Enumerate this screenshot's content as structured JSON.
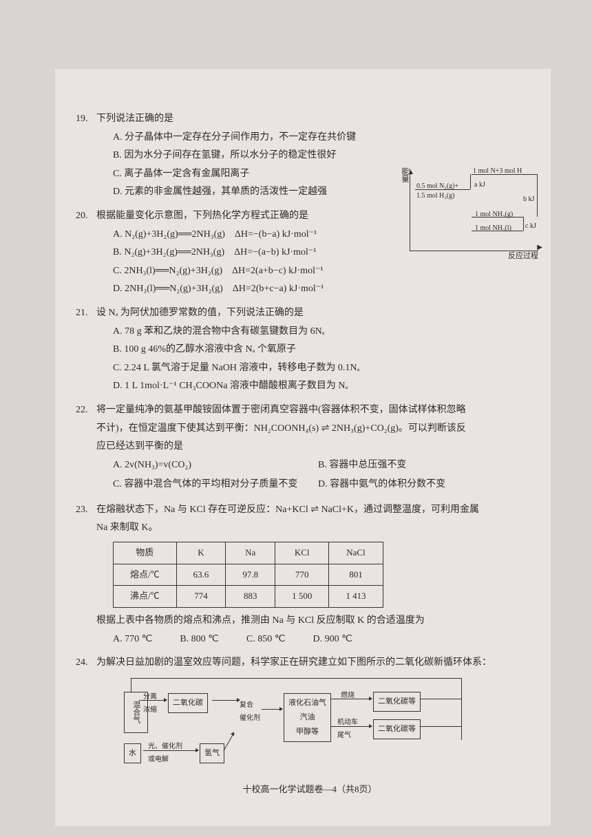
{
  "q19": {
    "num": "19.",
    "stem": "下列说法正确的是",
    "A": "A. 分子晶体中一定存在分子间作用力，不一定存在共价键",
    "B": "B. 因为水分子间存在氢键，所以水分子的稳定性很好",
    "C": "C. 离子晶体一定含有金属阳离子",
    "D": "D. 元素的非金属性越强，其单质的活泼性一定越强"
  },
  "q20": {
    "num": "20.",
    "stem": "根据能量变化示意图，下列热化学方程式正确的是",
    "A": "A. N₂(g)+3H₂(g)══2NH₃(g)　ΔH=−(b−a)  kJ·mol⁻¹",
    "B": "B. N₂(g)+3H₂(g)══2NH₃(g)　ΔH=−(a−b)  kJ·mol⁻¹",
    "C": "C. 2NH₃(l)══N₂(g)+3H₂(g)　ΔH=2(a+b−c)  kJ·mol⁻¹",
    "D": "D. 2NH₃(l)══N₂(g)+3H₂(g)　ΔH=2(b+c−a)  kJ·mol⁻¹",
    "diagram": {
      "ylabel": "能量",
      "xlabel": "反应过程",
      "top": "1 mol N+3 mol H",
      "left1": "0.5 mol N₂(g)+",
      "left2": "1.5 mol H₂(g)",
      "mid": "1 mol NH₃(g)",
      "bot": "1 mol NH₃(l)",
      "a": "a kJ",
      "b": "b kJ",
      "c": "c kJ"
    }
  },
  "q21": {
    "num": "21.",
    "stem": "设 Nₐ 为阿伏加德罗常数的值，下列说法正确的是",
    "A": "A. 78 g 苯和乙炔的混合物中含有碳氢键数目为 6Nₐ",
    "B": "B. 100 g 46%的乙醇水溶液中含 Nₐ 个氧原子",
    "C": "C. 2.24 L 氯气溶于足量 NaOH 溶液中，转移电子数为 0.1Nₐ",
    "D": "D. 1 L 1mol·L⁻¹ CH₃COONa 溶液中醋酸根离子数目为 Nₐ"
  },
  "q22": {
    "num": "22.",
    "stem1": "将一定量纯净的氨基甲酸铵固体置于密闭真空容器中(容器体积不变，固体试样体积忽略",
    "stem2": "不计)，在恒定温度下使其达到平衡：NH₂COONH₄(s) ⇌ 2NH₃(g)+CO₂(g)。可以判断该反",
    "stem3": "应已经达到平衡的是",
    "A": "A. 2v(NH₃)=v(CO₂)",
    "B": "B. 容器中总压强不变",
    "C": "C. 容器中混合气体的平均相对分子质量不变",
    "D": "D. 容器中氨气的体积分数不变"
  },
  "q23": {
    "num": "23.",
    "stem1": "在熔融状态下，Na 与 KCl 存在可逆反应：Na+KCl ⇌ NaCl+K，通过调整温度，可利用金属",
    "stem2": "Na 来制取 K。",
    "table": {
      "h1": "物质",
      "h2": "K",
      "h3": "Na",
      "h4": "KCl",
      "h5": "NaCl",
      "r1": "熔点/℃",
      "r1a": "63.6",
      "r1b": "97.8",
      "r1c": "770",
      "r1d": "801",
      "r2": "沸点/℃",
      "r2a": "774",
      "r2b": "883",
      "r2c": "1 500",
      "r2d": "1 413"
    },
    "after": "根据上表中各物质的熔点和沸点，推测由 Na 与 KCl 反应制取 K 的合适温度为",
    "A": "A. 770 ℃",
    "B": "B. 800 ℃",
    "C": "C. 850 ℃",
    "D": "D. 900 ℃"
  },
  "q24": {
    "num": "24.",
    "stem": "为解决日益加剧的温室效应等问题，科学家正在研究建立如下图所示的二氧化碳新循环体系：",
    "flow": {
      "mix": "混合气",
      "sep": "分离\n浓缩",
      "co2a": "二氧化碳",
      "cat": "复合\n催化剂",
      "prod": "液化石油气\n汽油\n甲醇等",
      "burn": "燃烧",
      "co2b": "二氧化碳等",
      "car": "机动车\n尾气",
      "co2c": "二氧化碳等",
      "water": "水",
      "photo": "光、催化剂\n或电解",
      "h2": "氢气"
    }
  },
  "footer": "十校高一化学试题卷—4（共8页）"
}
